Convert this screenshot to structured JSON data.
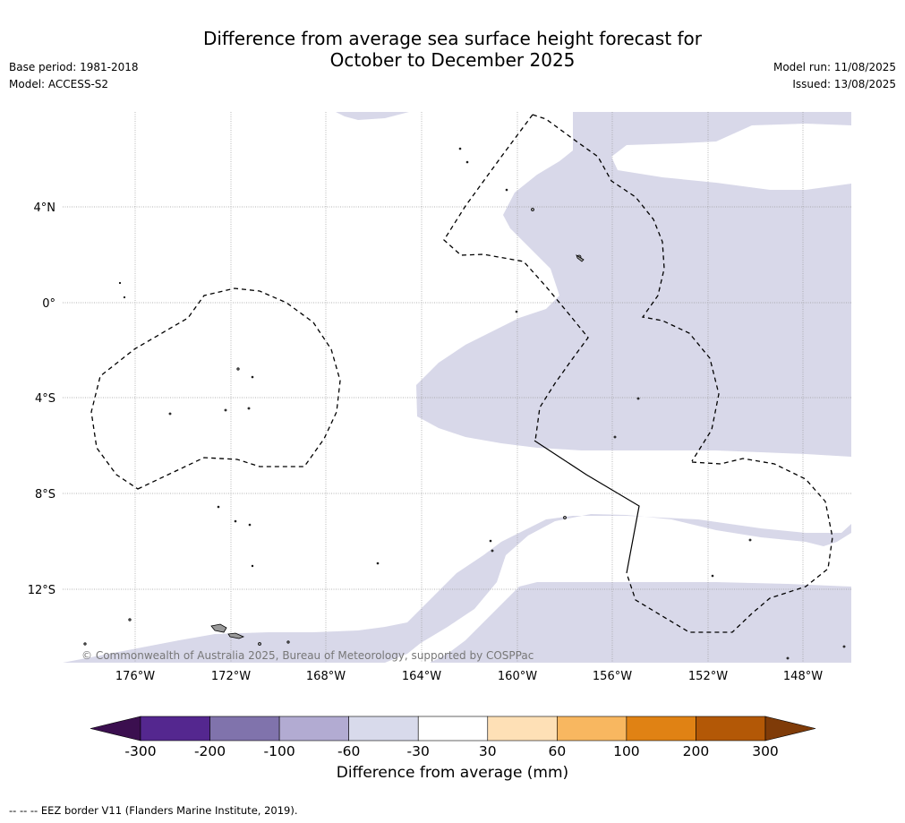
{
  "title": {
    "line1": "Difference from average sea surface height forecast for",
    "line2": "October to December 2025"
  },
  "meta_left": {
    "base_period": "Base period: 1981-2018",
    "model": "Model: ACCESS-S2"
  },
  "meta_right": {
    "model_run": "Model run: 11/08/2025",
    "issued": "Issued: 13/08/2025"
  },
  "map": {
    "region": "Central tropical Pacific",
    "lat_labels": [
      "4°N",
      "0°",
      "4°S",
      "8°S",
      "12°S"
    ],
    "lon_labels": [
      "176°W",
      "172°W",
      "168°W",
      "164°W",
      "160°W",
      "156°W",
      "152°W",
      "148°W"
    ],
    "copyright": "© Commonwealth of Australia 2025, Bureau of Meteorology, supported by COSPPac",
    "shaded_category": "-60 to -30",
    "shade_color": "#d8d8e9",
    "land_color": "#999999"
  },
  "colorbar": {
    "title": "Difference from average (mm)",
    "labels": [
      "-300",
      "-200",
      "-100",
      "-60",
      "-30",
      "30",
      "60",
      "100",
      "200",
      "300"
    ],
    "colors": [
      "#3b0f4f",
      "#54278f",
      "#8073ac",
      "#b2abd2",
      "#d8daeb",
      "#ffffff",
      "#fee0b6",
      "#f8b760",
      "#e08214",
      "#b35806",
      "#7f3b08"
    ]
  },
  "footer": {
    "legend_symbol": "-- -- --",
    "legend_text": "EEZ border V11 (Flanders Marine Institute, 2019)."
  }
}
